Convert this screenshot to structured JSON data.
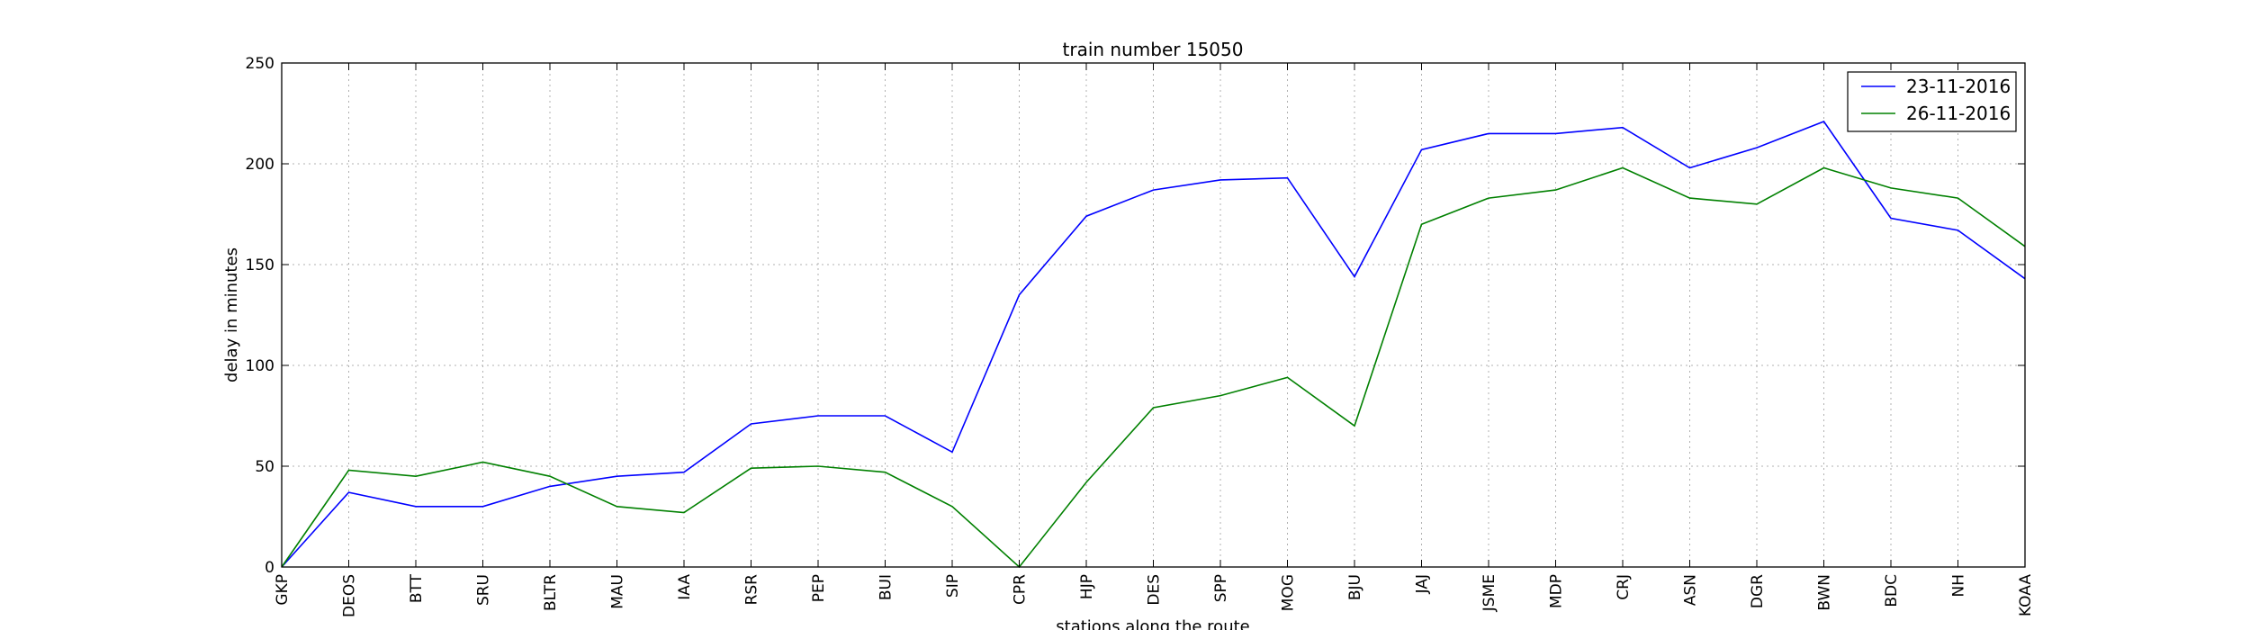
{
  "chart_data": {
    "type": "line",
    "title": "train number 15050",
    "xlabel": "stations along the route",
    "ylabel": "delay in minutes",
    "ylim": [
      0,
      250
    ],
    "yticks": [
      0,
      50,
      100,
      150,
      200,
      250
    ],
    "grid": true,
    "legend_position": "top-right",
    "categories": [
      "GKP",
      "DEOS",
      "BTT",
      "SRU",
      "BLTR",
      "MAU",
      "IAA",
      "RSR",
      "PEP",
      "BUI",
      "SIP",
      "CPR",
      "HJP",
      "DES",
      "SPP",
      "MOG",
      "BJU",
      "JAJ",
      "JSME",
      "MDP",
      "CRJ",
      "ASN",
      "DGR",
      "BWN",
      "BDC",
      "NH",
      "KOAA"
    ],
    "series": [
      {
        "name": "23-11-2016",
        "color": "#0000ff",
        "values": [
          0,
          37,
          30,
          30,
          40,
          45,
          47,
          71,
          75,
          75,
          57,
          135,
          174,
          187,
          192,
          193,
          144,
          207,
          215,
          215,
          218,
          198,
          208,
          221,
          173,
          167,
          143
        ]
      },
      {
        "name": "26-11-2016",
        "color": "#008000",
        "values": [
          0,
          48,
          45,
          52,
          45,
          30,
          27,
          49,
          50,
          47,
          30,
          0,
          42,
          79,
          85,
          94,
          70,
          170,
          183,
          187,
          198,
          183,
          180,
          198,
          188,
          183,
          159
        ]
      }
    ]
  }
}
